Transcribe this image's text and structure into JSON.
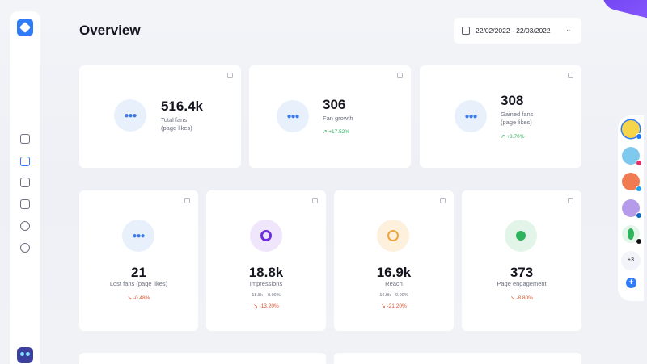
{
  "header": {
    "title": "Overview",
    "date_range": "22/02/2022 - 22/03/2022"
  },
  "sidebar": {
    "items": [
      {
        "icon": "dashboard-icon"
      },
      {
        "icon": "analytics-icon",
        "active": true
      },
      {
        "icon": "image-icon"
      },
      {
        "icon": "sticky-note-icon"
      },
      {
        "icon": "chat-icon"
      },
      {
        "icon": "globe-icon"
      }
    ]
  },
  "top_cards": [
    {
      "value": "516.4k",
      "label_line1": "Total fans",
      "label_line2": "(page likes)",
      "delta": ""
    },
    {
      "value": "306",
      "label_line1": "Fan growth",
      "label_line2": "",
      "delta": "↗ +17.52%"
    },
    {
      "value": "308",
      "label_line1": "Gained fans",
      "label_line2": "(page likes)",
      "delta": "↗ +3.70%"
    }
  ],
  "bottom_cards": [
    {
      "value": "21",
      "label": "Lost fans (page likes)",
      "delta": "↘ -0.48%",
      "mini1": "",
      "mini2": ""
    },
    {
      "value": "18.8k",
      "label": "Impressions",
      "delta": "↘ -13.20%",
      "mini1": "18.8k",
      "mini2": "0.00%"
    },
    {
      "value": "16.9k",
      "label": "Reach",
      "delta": "↘ -21.20%",
      "mini1": "16.9k",
      "mini2": "0.00%"
    },
    {
      "value": "373",
      "label": "Page engagement",
      "delta": "↘ -8.80%",
      "mini1": "",
      "mini2": ""
    }
  ],
  "social_rail": {
    "accounts": [
      {
        "network": "facebook",
        "color": "#f7d54a",
        "badge": "#1877f2"
      },
      {
        "network": "instagram",
        "color": "#7fc9ef",
        "badge": "#e1306c"
      },
      {
        "network": "twitter",
        "color": "#f07b52",
        "badge": "#1da1f2"
      },
      {
        "network": "linkedin",
        "color": "#b59bea",
        "badge": "#0a66c2"
      },
      {
        "network": "tiktok",
        "color": "#2eb35a",
        "badge": "#111111"
      }
    ],
    "more_label": "+3"
  },
  "colors": {
    "accent": "#2f7cf6",
    "up": "#2fb35d",
    "down": "#d8542c"
  }
}
